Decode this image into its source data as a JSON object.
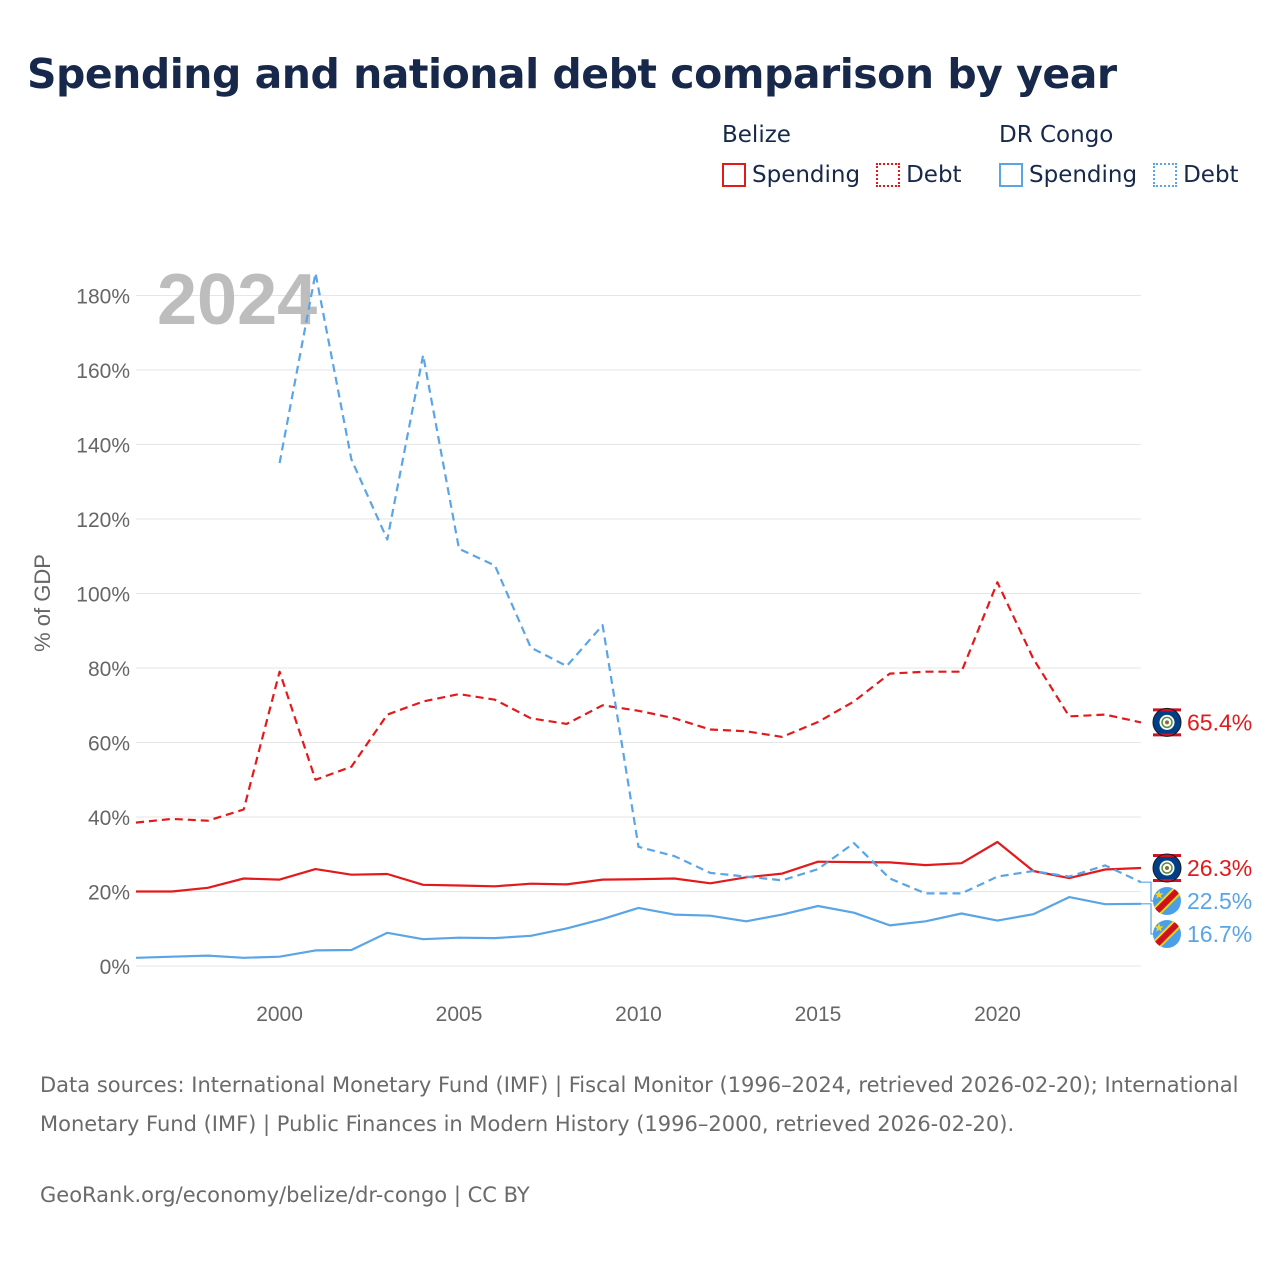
{
  "title": "Spending and national debt comparison by year",
  "legend": {
    "groups": [
      {
        "name": "Belize",
        "color": "#e31a1c",
        "items": [
          {
            "label": "Spending",
            "style": "solid"
          },
          {
            "label": "Debt",
            "style": "dotted"
          }
        ]
      },
      {
        "name": "DR Congo",
        "color": "#5aa5e6",
        "items": [
          {
            "label": "Spending",
            "style": "solid"
          },
          {
            "label": "Debt",
            "style": "dotted"
          }
        ]
      }
    ]
  },
  "chart_data": {
    "type": "line",
    "year_watermark": "2024",
    "ylabel": "% of GDP",
    "ylim": [
      0,
      190
    ],
    "xlim": [
      1996,
      2024
    ],
    "yticks": [
      0,
      20,
      40,
      60,
      80,
      100,
      120,
      140,
      160,
      180
    ],
    "ytick_labels": [
      "0%",
      "20%",
      "40%",
      "60%",
      "80%",
      "100%",
      "120%",
      "140%",
      "160%",
      "180%"
    ],
    "xticks": [
      2000,
      2005,
      2010,
      2015,
      2020
    ],
    "xtick_labels": [
      "2000",
      "2005",
      "2010",
      "2015",
      "2020"
    ],
    "grid": true,
    "series": [
      {
        "name": "Belize Debt",
        "country": "Belize",
        "metric": "Debt",
        "color": "#e31a1c",
        "dash": "dashed",
        "x": [
          1996,
          1997,
          1998,
          1999,
          2000,
          2001,
          2002,
          2003,
          2004,
          2005,
          2006,
          2007,
          2008,
          2009,
          2010,
          2011,
          2012,
          2013,
          2014,
          2015,
          2016,
          2017,
          2018,
          2019,
          2020,
          2021,
          2022,
          2023,
          2024
        ],
        "values": [
          38.5,
          39.5,
          39,
          42,
          79,
          50,
          53.5,
          67.5,
          71,
          73,
          71.5,
          66.5,
          65,
          70,
          68.5,
          66.5,
          63.5,
          63,
          61.5,
          65.5,
          71,
          78.5,
          79,
          79,
          103,
          82.5,
          67,
          67.5,
          65.4
        ],
        "end_label": "65.4%"
      },
      {
        "name": "Belize Spending",
        "country": "Belize",
        "metric": "Spending",
        "color": "#e31a1c",
        "dash": "solid",
        "x": [
          1996,
          1997,
          1998,
          1999,
          2000,
          2001,
          2002,
          2003,
          2004,
          2005,
          2006,
          2007,
          2008,
          2009,
          2010,
          2011,
          2012,
          2013,
          2014,
          2015,
          2016,
          2017,
          2018,
          2019,
          2020,
          2021,
          2022,
          2023,
          2024
        ],
        "values": [
          20,
          20,
          21,
          23.5,
          23.2,
          26,
          24.5,
          24.7,
          21.8,
          21.6,
          21.4,
          22.1,
          21.9,
          23.2,
          23.3,
          23.5,
          22.2,
          23.8,
          24.8,
          28,
          27.9,
          27.8,
          27.1,
          27.6,
          33.3,
          25.5,
          23.6,
          25.9,
          26.3
        ],
        "end_label": "26.3%"
      },
      {
        "name": "DR Congo Debt",
        "country": "DR Congo",
        "metric": "Debt",
        "color": "#5aa5e6",
        "dash": "dashed",
        "x": [
          2000,
          2001,
          2002,
          2003,
          2004,
          2005,
          2006,
          2007,
          2008,
          2009,
          2010,
          2011,
          2012,
          2013,
          2014,
          2015,
          2016,
          2017,
          2018,
          2019,
          2020,
          2021,
          2022,
          2023,
          2024
        ],
        "values": [
          135,
          186,
          136,
          114.5,
          164,
          112,
          107.5,
          85.5,
          80.5,
          91.5,
          32,
          29.5,
          25,
          24,
          23,
          26,
          33,
          23.5,
          19.5,
          19.5,
          24,
          25.5,
          24,
          27,
          22.5
        ],
        "end_label": "22.5%"
      },
      {
        "name": "DR Congo Spending",
        "country": "DR Congo",
        "metric": "Spending",
        "color": "#5aa5e6",
        "dash": "solid",
        "x": [
          1996,
          1997,
          1998,
          1999,
          2000,
          2001,
          2002,
          2003,
          2004,
          2005,
          2006,
          2007,
          2008,
          2009,
          2010,
          2011,
          2012,
          2013,
          2014,
          2015,
          2016,
          2017,
          2018,
          2019,
          2020,
          2021,
          2022,
          2023,
          2024
        ],
        "values": [
          2.2,
          2.5,
          2.8,
          2.2,
          2.5,
          4.2,
          4.3,
          8.9,
          7.2,
          7.6,
          7.5,
          8.1,
          10.1,
          12.6,
          15.6,
          13.8,
          13.5,
          12,
          13.8,
          16.1,
          14.3,
          10.9,
          12,
          14.1,
          12.2,
          13.9,
          18.5,
          16.6,
          16.7
        ],
        "end_label": "16.7%"
      }
    ]
  },
  "sources": "Data sources: International Monetary Fund (IMF) | Fiscal Monitor (1996–2024, retrieved 2026-02-20); International Monetary Fund (IMF) | Public Finances in Modern History (1996–2000, retrieved 2026-02-20).",
  "attribution": "GeoRank.org/economy/belize/dr-congo | CC BY"
}
